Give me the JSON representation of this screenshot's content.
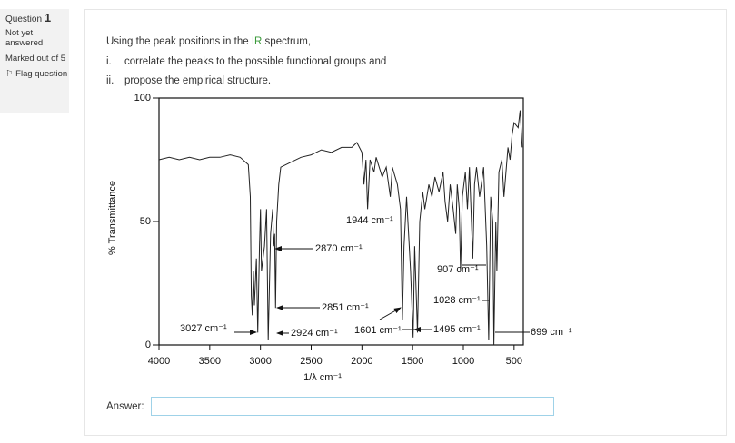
{
  "sidebar": {
    "question_label": "Question",
    "question_number": "1",
    "status": "Not yet answered",
    "marks": "Marked out of 5",
    "flag": "Flag question"
  },
  "question": {
    "intro_before": "Using the peak positions in the",
    "intro_link": "IR",
    "intro_after": "spectrum,",
    "items": [
      {
        "marker": "i.",
        "text": "correlate the peaks to the possible functional groups and"
      },
      {
        "marker": "ii.",
        "text": "propose the empirical structure."
      }
    ]
  },
  "chart_data": {
    "type": "line",
    "xlabel": "1/λ cm⁻¹",
    "ylabel": "% Transmittance",
    "xlim": [
      4000,
      400
    ],
    "ylim": [
      0,
      100
    ],
    "xticks": [
      4000,
      3500,
      3000,
      2500,
      2000,
      1500,
      1000,
      500
    ],
    "yticks": [
      0,
      50,
      100
    ],
    "color": "#222222",
    "x": [
      4000,
      3900,
      3800,
      3700,
      3600,
      3500,
      3400,
      3300,
      3200,
      3120,
      3100,
      3090,
      3080,
      3070,
      3060,
      3040,
      3027,
      3010,
      3000,
      2990,
      2960,
      2940,
      2924,
      2900,
      2880,
      2870,
      2860,
      2851,
      2840,
      2820,
      2800,
      2700,
      2600,
      2500,
      2400,
      2300,
      2200,
      2100,
      2050,
      2000,
      1980,
      1960,
      1944,
      1920,
      1880,
      1860,
      1800,
      1760,
      1720,
      1700,
      1650,
      1620,
      1601,
      1585,
      1560,
      1520,
      1495,
      1480,
      1452,
      1430,
      1400,
      1380,
      1340,
      1310,
      1280,
      1240,
      1200,
      1180,
      1155,
      1130,
      1100,
      1075,
      1060,
      1040,
      1028,
      1010,
      980,
      960,
      940,
      907,
      890,
      870,
      840,
      800,
      770,
      750,
      730,
      710,
      699,
      680,
      670,
      650,
      620,
      600,
      560,
      540,
      520,
      500,
      460,
      440,
      420
    ],
    "values": [
      75,
      76,
      75,
      76,
      75,
      76,
      76,
      77,
      76,
      73,
      60,
      20,
      12,
      30,
      16,
      35,
      5,
      40,
      55,
      30,
      40,
      55,
      2,
      45,
      55,
      40,
      45,
      15,
      50,
      65,
      72,
      74,
      76,
      77,
      79,
      78,
      80,
      80,
      82,
      78,
      65,
      75,
      55,
      75,
      70,
      76,
      68,
      72,
      60,
      72,
      65,
      55,
      10,
      40,
      60,
      30,
      3,
      40,
      5,
      50,
      62,
      55,
      65,
      60,
      68,
      62,
      70,
      58,
      50,
      65,
      55,
      45,
      65,
      55,
      30,
      60,
      70,
      55,
      72,
      35,
      65,
      72,
      60,
      72,
      40,
      2,
      60,
      50,
      0,
      50,
      30,
      70,
      75,
      60,
      80,
      75,
      85,
      90,
      88,
      95,
      80
    ],
    "annotations": [
      "1944 cm⁻¹",
      "2870 cm⁻¹",
      "907 cm⁻¹",
      "2851 cm⁻¹",
      "1028 cm⁻¹",
      "3027 cm⁻¹",
      "2924 cm⁻¹",
      "1601 cm⁻¹",
      "1495 cm⁻¹",
      "699 cm⁻¹"
    ]
  },
  "answer": {
    "label": "Answer:"
  }
}
